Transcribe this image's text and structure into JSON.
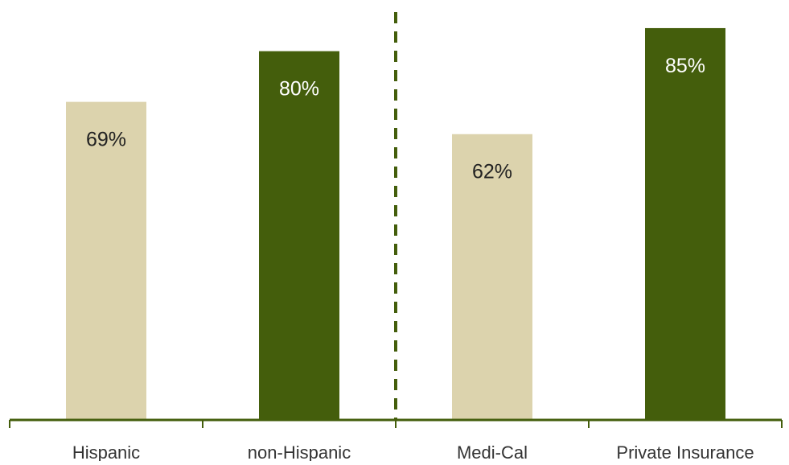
{
  "chart_data": {
    "type": "bar",
    "title": "",
    "xlabel": "",
    "ylabel": "",
    "ylim": [
      0,
      90
    ],
    "grid": false,
    "legend": "none",
    "categories": [
      "Hispanic",
      "non-Hispanic",
      "Medi-Cal",
      "Private Insurance"
    ],
    "values": [
      69,
      80,
      62,
      85
    ],
    "value_labels": [
      "69%",
      "80%",
      "62%",
      "85%"
    ],
    "groups": [
      {
        "categories": [
          "Hispanic",
          "non-Hispanic"
        ]
      },
      {
        "categories": [
          "Medi-Cal",
          "Private Insurance"
        ]
      }
    ],
    "group_separator": "dashed",
    "colors": {
      "light_bar": "#dcd3ad",
      "dark_bar": "#445e0c",
      "light_label": "#222222",
      "dark_label": "#ffffff",
      "axis": "#445e0c",
      "category_text": "#333333"
    },
    "bar_color_keys": [
      "light_bar",
      "dark_bar",
      "light_bar",
      "dark_bar"
    ],
    "label_color_keys": [
      "light_label",
      "dark_label",
      "light_label",
      "dark_label"
    ]
  }
}
